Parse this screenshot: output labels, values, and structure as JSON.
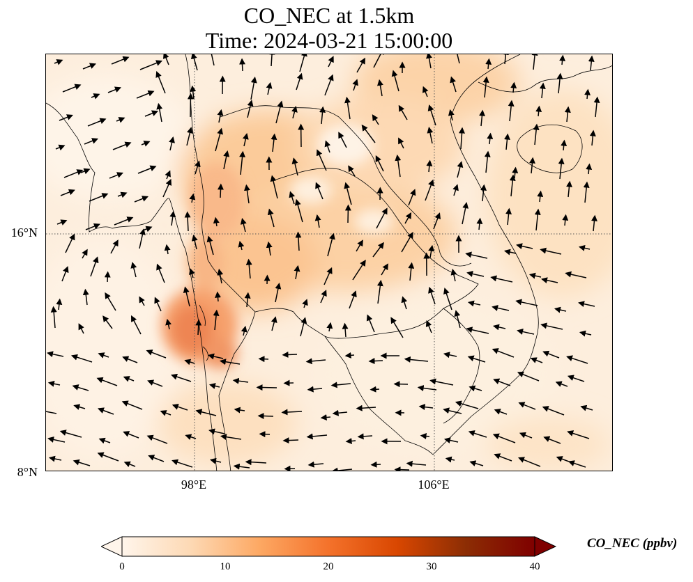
{
  "title": {
    "line1": "CO_NEC at 1.5km",
    "line2": "Time: 2024-03-21 15:00:00"
  },
  "map": {
    "lat_labels": [
      "16°N",
      "8°N"
    ],
    "lon_labels": [
      "98°E",
      "106°E"
    ]
  },
  "colorbar": {
    "label": "CO_NEC (ppbv)",
    "ticks": [
      "0",
      "10",
      "20",
      "30",
      "40"
    ],
    "colormap": [
      "#fff5eb",
      "#fdd9b4",
      "#fda863",
      "#f4722b",
      "#d94701",
      "#8c2d04",
      "#7f0000"
    ]
  }
}
